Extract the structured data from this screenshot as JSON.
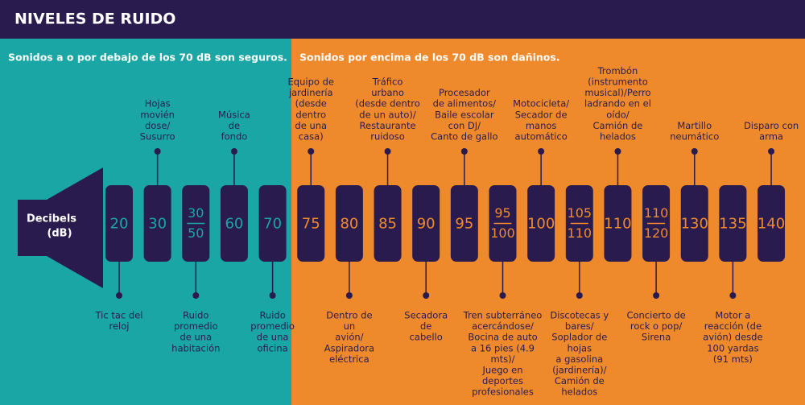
{
  "title": "NIVELES DE RUIDO",
  "safe_note": "Sonidos a o por debajo de los 70 dB son seguros.",
  "harmful_note": "Sonidos por encima de los 70 dB son dañinos.",
  "speaker_label": [
    "Decibels",
    "(dB)"
  ],
  "keys": [
    {
      "levels": [
        20
      ],
      "position": "bottom",
      "label": [
        "Tic tac del",
        "reloj"
      ]
    },
    {
      "levels": [
        30
      ],
      "position": "top",
      "label": [
        "Hojas",
        "movién",
        "dose/",
        "Susurro"
      ]
    },
    {
      "levels": [
        30,
        50
      ],
      "position": "bottom",
      "label": [
        "Ruido",
        "promedio",
        "de una",
        "habitación"
      ]
    },
    {
      "levels": [
        60
      ],
      "position": "top",
      "label": [
        "Música",
        "de",
        "fondo"
      ]
    },
    {
      "levels": [
        70
      ],
      "position": "bottom",
      "label": [
        "Ruido",
        "promedio",
        "de una",
        "oficina"
      ]
    },
    {
      "levels": [
        75
      ],
      "position": "top",
      "label": [
        "Equipo de",
        "jardinería",
        "(desde",
        "dentro",
        "de una",
        "casa)"
      ]
    },
    {
      "levels": [
        80
      ],
      "position": "bottom",
      "label": [
        "Dentro de",
        "un",
        "avión/",
        "Aspiradora",
        "eléctrica"
      ]
    },
    {
      "levels": [
        85
      ],
      "position": "top",
      "label": [
        "Tráfico",
        "urbano",
        "(desde dentro",
        "de un auto)/",
        "Restaurante",
        "ruidoso"
      ]
    },
    {
      "levels": [
        90
      ],
      "position": "bottom",
      "label": [
        "Secadora",
        "de",
        "cabello"
      ]
    },
    {
      "levels": [
        95
      ],
      "position": "top",
      "label": [
        "Procesador",
        "de alimentos/",
        "Baile escolar",
        "con DJ/",
        "Canto de gallo"
      ]
    },
    {
      "levels": [
        95,
        100
      ],
      "position": "bottom",
      "label": [
        "Tren subterráneo",
        "acercándose/",
        "Bocina de auto",
        "a 16 pies (4.9",
        "mts)/",
        "Juego en",
        "deportes",
        "profesionales"
      ]
    },
    {
      "levels": [
        100
      ],
      "position": "top",
      "label": [
        "Motocicleta/",
        "Secador de",
        "manos",
        "automático"
      ]
    },
    {
      "levels": [
        105,
        110
      ],
      "position": "bottom",
      "label": [
        "Discotecas y",
        "bares/",
        "Soplador de",
        "hojas",
        "a gasolina",
        "(jardinería)/",
        "Camión de",
        "helados"
      ]
    },
    {
      "levels": [
        110
      ],
      "position": "top",
      "label": [
        "Trombón",
        "(instrumento",
        "musical)/Perro",
        "ladrando en el",
        "oído/",
        "Camión de",
        "helados"
      ]
    },
    {
      "levels": [
        110,
        120
      ],
      "position": "bottom",
      "label": [
        "Concierto de",
        "rock o pop/",
        "Sirena"
      ]
    },
    {
      "levels": [
        130
      ],
      "position": "top",
      "label": [
        "Martillo",
        "neumático"
      ]
    },
    {
      "levels": [
        135
      ],
      "position": "bottom",
      "label": [
        "Motor a",
        "reacción (de",
        "avión) desde",
        "100 yardas",
        "(91 mts)"
      ]
    },
    {
      "levels": [
        140
      ],
      "position": "top",
      "label": [
        "Disparo con",
        "arma"
      ]
    }
  ]
}
